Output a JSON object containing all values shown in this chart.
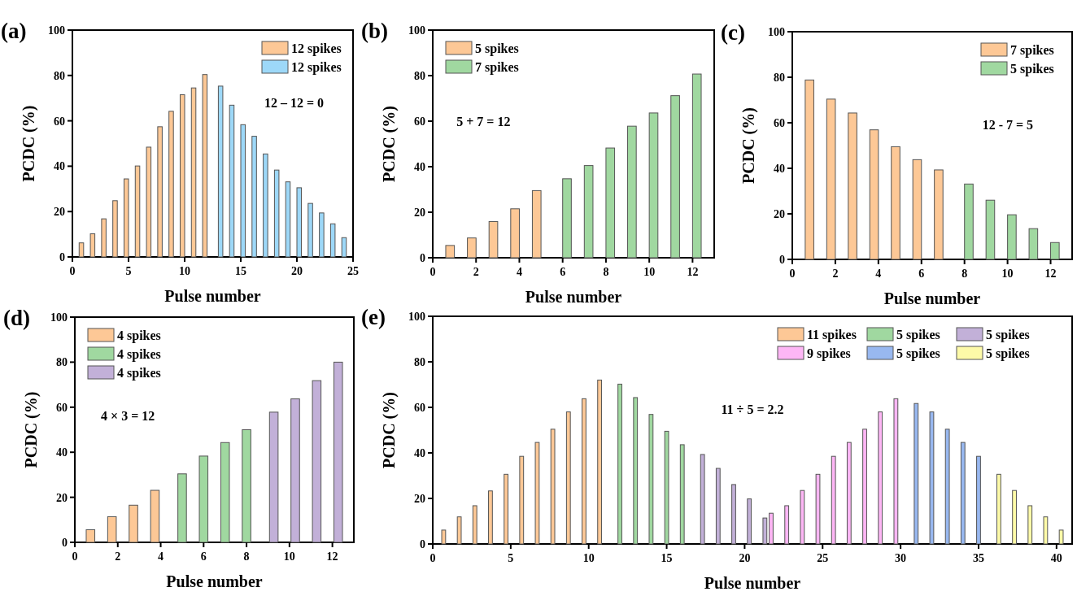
{
  "chart_data": [
    {
      "type": "bar",
      "title": "(a)",
      "xlabel": "Pulse number",
      "ylabel": "PCDC (%)",
      "xlim": [
        0,
        25
      ],
      "xticks": [
        0,
        5,
        10,
        15,
        20,
        25
      ],
      "ylim": [
        0,
        100
      ],
      "yticks": [
        0,
        20,
        40,
        60,
        80,
        100
      ],
      "legend": "top right",
      "annotations": [
        "12 – 12 = 0"
      ],
      "series": [
        {
          "name": "12 spikes",
          "color": "#fdc896",
          "x": [
            0.8,
            1.8,
            2.8,
            3.8,
            4.8,
            5.8,
            6.8,
            7.8,
            8.8,
            9.8,
            10.8,
            11.8
          ],
          "values": [
            6.2,
            10.2,
            16.8,
            24.8,
            34.4,
            40.1,
            48.4,
            57.4,
            64.2,
            71.5,
            74.5,
            80.4
          ]
        },
        {
          "name": "12 spikes",
          "color": "#9dd8f8",
          "x": [
            13.2,
            14.2,
            15.2,
            16.2,
            17.2,
            18.2,
            19.2,
            20.2,
            21.2,
            22.2,
            23.2,
            24.2
          ],
          "values": [
            75.3,
            66.9,
            58.3,
            53.2,
            45.4,
            38.3,
            33.1,
            30.5,
            23.6,
            19.4,
            14.6,
            8.5
          ]
        }
      ]
    },
    {
      "type": "bar",
      "title": "(b)",
      "xlabel": "Pulse number",
      "ylabel": "PCDC (%)",
      "xlim": [
        0,
        13
      ],
      "xticks": [
        0,
        2,
        4,
        6,
        8,
        10,
        12
      ],
      "ylim": [
        0,
        100
      ],
      "yticks": [
        0,
        20,
        40,
        60,
        80,
        100
      ],
      "legend": "top left",
      "annotations": [
        "5 + 7 = 12"
      ],
      "series": [
        {
          "name": "5 spikes",
          "color": "#fdc896",
          "x": [
            0.8,
            1.8,
            2.8,
            3.8,
            4.8
          ],
          "values": [
            5.4,
            8.7,
            15.9,
            21.5,
            29.5
          ]
        },
        {
          "name": "7 spikes",
          "color": "#a0d8a0",
          "x": [
            6.2,
            7.2,
            8.2,
            9.2,
            10.2,
            11.2,
            12.2
          ],
          "values": [
            34.7,
            40.5,
            48.2,
            57.8,
            63.6,
            71.2,
            80.7
          ]
        }
      ]
    },
    {
      "type": "bar",
      "title": "(c)",
      "xlabel": "Pulse number",
      "ylabel": "PCDC (%)",
      "xlim": [
        0,
        13
      ],
      "xticks": [
        0,
        2,
        4,
        6,
        8,
        10,
        12
      ],
      "ylim": [
        0,
        100
      ],
      "yticks": [
        0,
        20,
        40,
        60,
        80,
        100
      ],
      "legend": "top right",
      "annotations": [
        "12 - 7 = 5"
      ],
      "series": [
        {
          "name": "7 spikes",
          "color": "#fdc896",
          "x": [
            0.8,
            1.8,
            2.8,
            3.8,
            4.8,
            5.8,
            6.8
          ],
          "values": [
            78.8,
            70.4,
            64.3,
            56.9,
            49.5,
            43.8,
            39.3
          ]
        },
        {
          "name": "5 spikes",
          "color": "#a0d8a0",
          "x": [
            8.2,
            9.2,
            10.2,
            11.2,
            12.2
          ],
          "values": [
            33.1,
            26,
            19.6,
            13.5,
            7.4
          ]
        }
      ]
    },
    {
      "type": "bar",
      "title": "(d)",
      "xlabel": "Pulse number",
      "ylabel": "PCDC (%)",
      "xlim": [
        0,
        13
      ],
      "xticks": [
        0,
        2,
        4,
        6,
        8,
        10,
        12
      ],
      "ylim": [
        0,
        100
      ],
      "yticks": [
        0,
        20,
        40,
        60,
        80,
        100
      ],
      "legend": "top left",
      "annotations": [
        "4 × 3 = 12"
      ],
      "series": [
        {
          "name": "4 spikes",
          "color": "#fdc896",
          "x": [
            0.73,
            1.73,
            2.73,
            3.73
          ],
          "values": [
            5.6,
            11.4,
            16.5,
            23.1
          ]
        },
        {
          "name": "4 spikes",
          "color": "#a0d8a0",
          "x": [
            5,
            6,
            7,
            8
          ],
          "values": [
            30.4,
            38.3,
            44.3,
            50
          ]
        },
        {
          "name": "4 spikes",
          "color": "#c2b0d8",
          "x": [
            9.27,
            10.27,
            11.27,
            12.27
          ],
          "values": [
            57.8,
            63.7,
            71.8,
            80
          ]
        }
      ]
    },
    {
      "type": "bar",
      "title": "(e)",
      "xlabel": "Pulse number",
      "ylabel": "PCDC (%)",
      "xlim": [
        0,
        41
      ],
      "xticks": [
        0,
        5,
        10,
        15,
        20,
        25,
        30,
        35,
        40
      ],
      "ylim": [
        0,
        100
      ],
      "yticks": [
        0,
        20,
        40,
        60,
        80,
        100
      ],
      "legend": "top right",
      "annotations": [
        "11 ÷ 5 = 2.2"
      ],
      "series": [
        {
          "name": "11 spikes",
          "color": "#fdc896",
          "x": [
            0.7,
            1.7,
            2.7,
            3.7,
            4.7,
            5.7,
            6.7,
            7.7,
            8.7,
            9.7,
            10.7
          ],
          "values": [
            6.1,
            11.9,
            16.8,
            23.3,
            30.6,
            38.5,
            44.6,
            50.4,
            58,
            63.8,
            72
          ]
        },
        {
          "name": "5 spikes",
          "color": "#a0d8a0",
          "x": [
            12,
            13,
            14,
            15,
            16
          ],
          "values": [
            70.2,
            64.3,
            56.9,
            49.5,
            43.6
          ]
        },
        {
          "name": "5 spikes",
          "color": "#c2b0d8",
          "x": [
            17.3,
            18.3,
            19.3,
            20.3,
            21.3
          ],
          "values": [
            39.3,
            33.2,
            26.1,
            19.8,
            11.4
          ]
        },
        {
          "name": "9 spikes",
          "color": "#fdb6f5",
          "x": [
            21.7,
            22.7,
            23.7,
            24.7,
            25.7,
            26.7,
            27.7,
            28.7,
            29.7
          ],
          "values": [
            13.5,
            16.8,
            23.5,
            30.6,
            38.5,
            44.6,
            50.4,
            58,
            63.8
          ]
        },
        {
          "name": "5 spikes",
          "color": "#98b8f0",
          "x": [
            31,
            32,
            33,
            34,
            35
          ],
          "values": [
            61.7,
            58,
            50.4,
            44.6,
            38.5
          ]
        },
        {
          "name": "5 spikes",
          "color": "#fdfaa8",
          "x": [
            36.3,
            37.3,
            38.3,
            39.3,
            40.3
          ],
          "values": [
            30.6,
            23.5,
            16.8,
            11.9,
            6.1
          ]
        }
      ]
    }
  ]
}
